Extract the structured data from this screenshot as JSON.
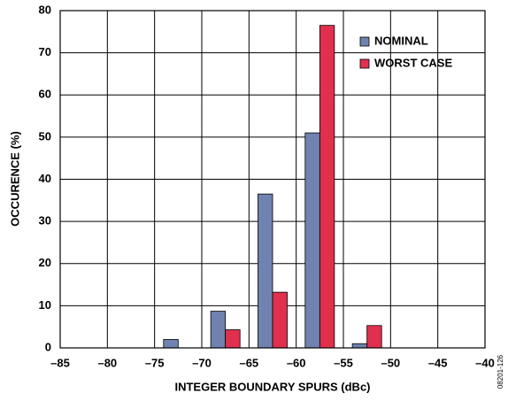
{
  "chart_data": {
    "type": "bar",
    "xlabel": "INTEGER BOUNDARY SPURS (dBc)",
    "ylabel": "OCCURENCE (%)",
    "annotation": "08201-126",
    "x": [
      -72.5,
      -67.5,
      -62.5,
      -57.5,
      -52.5
    ],
    "series": [
      {
        "name": "NOMINAL",
        "color": "#7083b0",
        "values": [
          2,
          8.7,
          36.5,
          51,
          1
        ]
      },
      {
        "name": "WORST CASE",
        "color": "#e0304e",
        "values": [
          0,
          4.3,
          13.2,
          76.5,
          5.3
        ]
      }
    ],
    "xlim": [
      -85,
      -40
    ],
    "xticks": [
      {
        "value": -85,
        "label": "–85"
      },
      {
        "value": -80,
        "label": "–80"
      },
      {
        "value": -75,
        "label": "–75"
      },
      {
        "value": -70,
        "label": "–70"
      },
      {
        "value": -65,
        "label": "–65"
      },
      {
        "value": -60,
        "label": "–60"
      },
      {
        "value": -55,
        "label": "–55"
      },
      {
        "value": -50,
        "label": "–50"
      },
      {
        "value": -45,
        "label": "–45"
      },
      {
        "value": -40,
        "label": "–40"
      }
    ],
    "ylim": [
      0,
      80
    ],
    "yticks": [
      0,
      10,
      20,
      30,
      40,
      50,
      60,
      70,
      80
    ],
    "grid": true,
    "legend": "top-right"
  }
}
